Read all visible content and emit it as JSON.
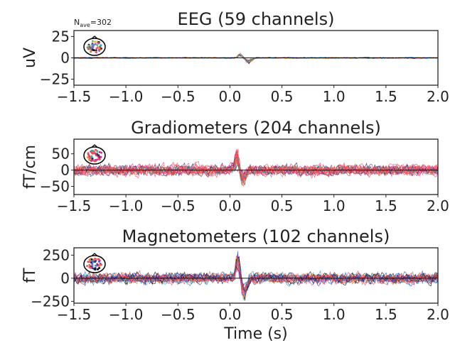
{
  "annotation": {
    "prefix": "N",
    "subscript": "ave",
    "value": "=302"
  },
  "chart_data": [
    {
      "type": "line",
      "title": "EEG (59 channels)",
      "xlabel": "",
      "ylabel": "uV",
      "xlim": [
        -1.5,
        2.0
      ],
      "ylim": [
        -32,
        32
      ],
      "xticks": [
        -1.5,
        -1.0,
        -0.5,
        0.0,
        0.5,
        1.0,
        1.5,
        2.0
      ],
      "xticklabels": [
        "−1.5",
        "−1.0",
        "−0.5",
        "0.0",
        "0.5",
        "1.0",
        "1.5",
        "2.0"
      ],
      "yticks": [
        25,
        0,
        -25
      ],
      "yticklabels": [
        "25",
        "0",
        "−25"
      ],
      "n_channels": 59,
      "noise_amplitude": 0.6,
      "peaks": [
        {
          "t": 0.1,
          "amp": 4,
          "width": 0.03
        },
        {
          "t": 0.18,
          "amp": -5,
          "width": 0.04
        }
      ],
      "colors": [
        "#e8b23a",
        "#3a9ad9",
        "#d94fa0",
        "#8a5fd0",
        "#50c080",
        "#111111",
        "#8b1a4a",
        "#c87a3a"
      ],
      "grid": false,
      "inset": "sensor topomap, top-left"
    },
    {
      "type": "line",
      "title": "Gradiometers (204 channels)",
      "xlabel": "",
      "ylabel": "fT/cm",
      "xlim": [
        -1.5,
        2.0
      ],
      "ylim": [
        -75,
        95
      ],
      "xticks": [
        -1.5,
        -1.0,
        -0.5,
        0.0,
        0.5,
        1.0,
        1.5,
        2.0
      ],
      "xticklabels": [
        "−1.5",
        "−1.0",
        "−0.5",
        "0.0",
        "0.5",
        "1.0",
        "1.5",
        "2.0"
      ],
      "yticks": [
        50,
        0,
        -50
      ],
      "yticklabels": [
        "50",
        "0",
        "−50"
      ],
      "n_channels": 204,
      "noise_amplitude": 14,
      "peaks": [
        {
          "t": 0.07,
          "amp": 50,
          "width": 0.03
        },
        {
          "t": 0.12,
          "amp": -35,
          "width": 0.04
        }
      ],
      "colors": [
        "#ff5a3c",
        "#f04a6a",
        "#d02aa0",
        "#ff7a30",
        "#b03090",
        "#2a2a6a",
        "#ff4040",
        "#30b0a0"
      ],
      "grid": false,
      "inset": "sensor topomap, top-left"
    },
    {
      "type": "line",
      "title": "Magnetometers (102 channels)",
      "xlabel": "Time (s)",
      "ylabel": "fT",
      "xlim": [
        -1.5,
        2.0
      ],
      "ylim": [
        -270,
        330
      ],
      "xticks": [
        -1.5,
        -1.0,
        -0.5,
        0.0,
        0.5,
        1.0,
        1.5,
        2.0
      ],
      "xticklabels": [
        "−1.5",
        "−1.0",
        "−0.5",
        "0.0",
        "0.5",
        "1.0",
        "1.5",
        "2.0"
      ],
      "yticks": [
        250,
        0,
        -250
      ],
      "yticklabels": [
        "250",
        "0",
        "−250"
      ],
      "n_channels": 102,
      "noise_amplitude": 45,
      "peaks": [
        {
          "t": 0.08,
          "amp": 250,
          "width": 0.03
        },
        {
          "t": 0.13,
          "amp": -180,
          "width": 0.04
        }
      ],
      "colors": [
        "#ff5a3c",
        "#2a2a8a",
        "#3050c0",
        "#d02aa0",
        "#ff7a30",
        "#111111",
        "#f04a6a",
        "#30a0d0"
      ],
      "grid": false,
      "inset": "sensor topomap, top-left"
    }
  ]
}
